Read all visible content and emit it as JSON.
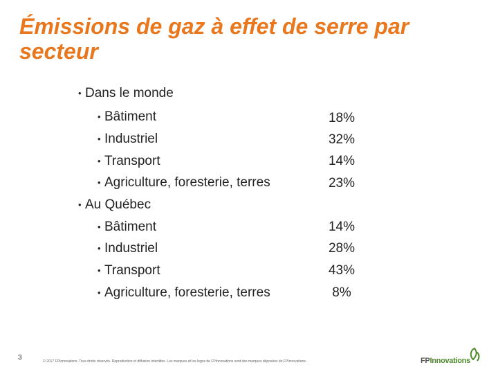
{
  "title": "Émissions de gaz à effet de serre par secteur",
  "sections": [
    {
      "label": "Dans le monde",
      "items": [
        {
          "label": "Bâtiment",
          "value": "18%"
        },
        {
          "label": "Industriel",
          "value": "32%"
        },
        {
          "label": "Transport",
          "value": "14%"
        },
        {
          "label": "Agriculture, foresterie, terres",
          "value": "23%"
        }
      ]
    },
    {
      "label": "Au Québec",
      "items": [
        {
          "label": "Bâtiment",
          "value": "14%"
        },
        {
          "label": "Industriel",
          "value": "28%"
        },
        {
          "label": "Transport",
          "value": "43%"
        },
        {
          "label": "Agriculture, foresterie, terres",
          "value": "8%"
        }
      ]
    }
  ],
  "bullet": "•",
  "footer": {
    "slide_number": "3",
    "copyright": "© 2017 FPInnovations. Tous droits réservés. Reproduction et diffusion interdites. Les marques et les logos de FPInnovations sont des marques déposées de FPInnovations.",
    "logo_text_a": "FP",
    "logo_text_b": "Innovations"
  },
  "colors": {
    "title": "#e8771e",
    "logo_green": "#4d8a2a"
  },
  "icons": {
    "logo_mark": "leaf-icon"
  }
}
